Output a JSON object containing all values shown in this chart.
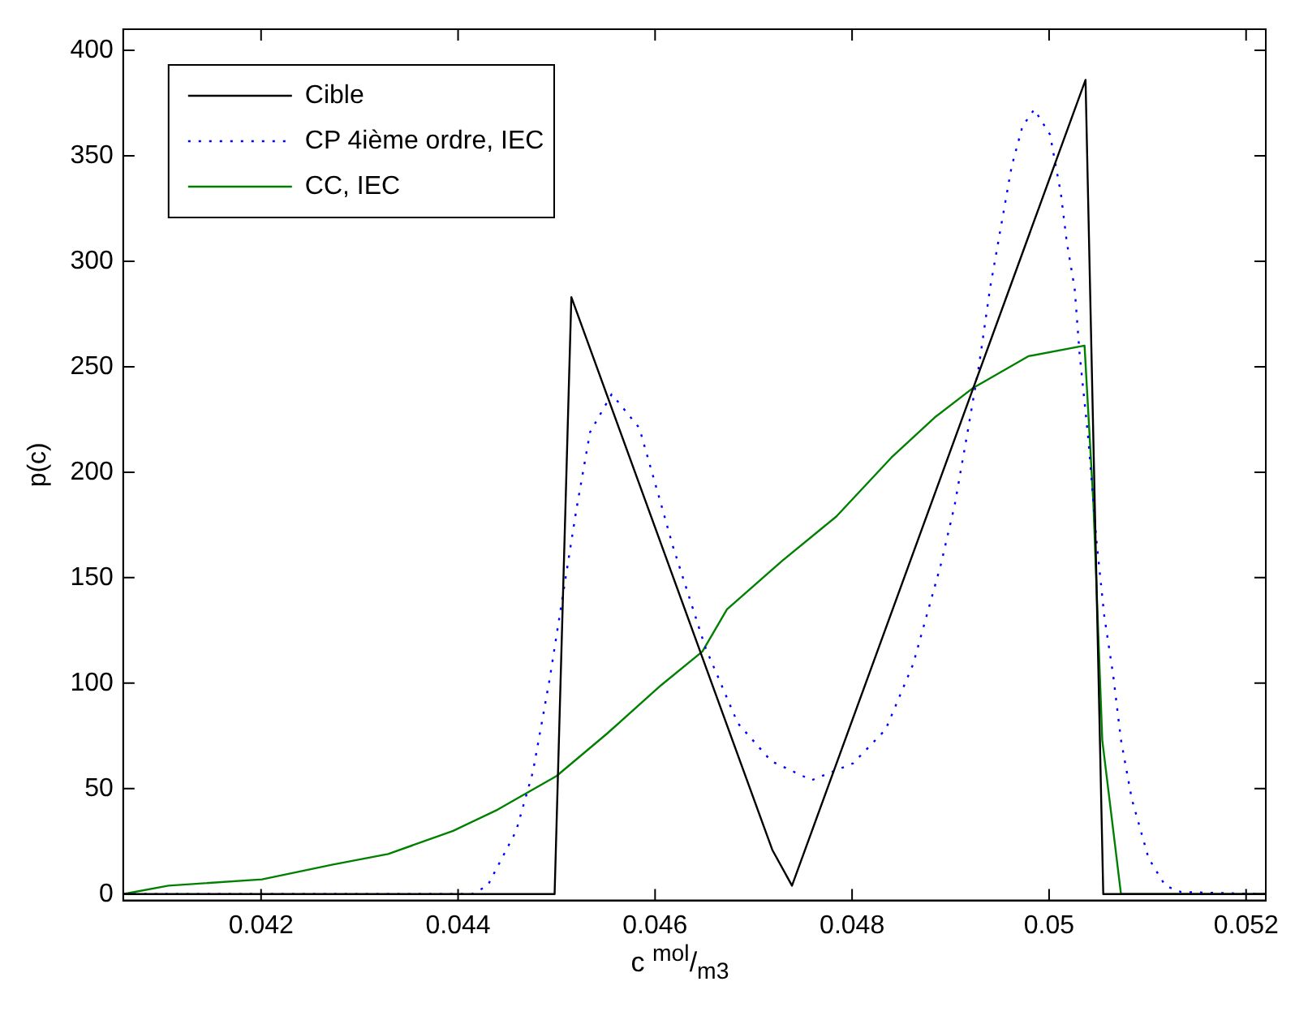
{
  "chart_data": {
    "type": "line",
    "xlabel": "c $^{mol}$/$_{m3}$",
    "ylabel": "p(c)",
    "xlim": [
      0.0406,
      0.0522
    ],
    "xticks": [
      0.042,
      0.044,
      0.046,
      0.048,
      0.05,
      0.052
    ],
    "ylim": [
      -3,
      410
    ],
    "yticks": [
      0,
      50,
      100,
      150,
      200,
      250,
      300,
      350,
      400
    ],
    "grid": false,
    "legend": "top left",
    "marker": "none",
    "series": [
      {
        "name": "Cible",
        "color": "#000000",
        "line_style": "solid",
        "x": [
          0.0406,
          0.04498,
          0.04515,
          0.04719,
          0.04739,
          0.05037,
          0.05055,
          0.0522
        ],
        "values": [
          0,
          0,
          283,
          21,
          4,
          386,
          0,
          0
        ]
      },
      {
        "name": "CP 4ième ordre, IEC",
        "color": "#0000ff",
        "line_style": "dotted",
        "x": [
          0.0406,
          0.04414,
          0.0443,
          0.04459,
          0.04476,
          0.04493,
          0.0452,
          0.04534,
          0.04556,
          0.04584,
          0.04606,
          0.04618,
          0.04651,
          0.04684,
          0.04718,
          0.04759,
          0.04801,
          0.04834,
          0.04862,
          0.0489,
          0.04904,
          0.04918,
          0.04929,
          0.0494,
          0.04951,
          0.04962,
          0.04973,
          0.04985,
          0.05001,
          0.05012,
          0.05018,
          0.05026,
          0.05031,
          0.0504,
          0.05048,
          0.05056,
          0.05065,
          0.05073,
          0.05084,
          0.05101,
          0.05118,
          0.05134,
          0.0522
        ],
        "values": [
          0,
          0,
          4,
          30,
          58,
          102,
          182,
          219,
          237,
          221,
          185,
          165,
          117,
          81,
          63,
          54,
          62,
          78,
          109,
          156,
          184,
          221,
          251,
          287,
          316,
          345,
          364,
          372,
          360,
          332,
          309,
          287,
          256,
          215,
          168,
          132,
          104,
          73,
          45,
          17,
          4,
          1,
          0
        ]
      },
      {
        "name": "CC, IEC",
        "color": "#008000",
        "line_style": "solid",
        "x": [
          0.0406,
          0.04106,
          0.04201,
          0.04273,
          0.04329,
          0.04395,
          0.0444,
          0.045,
          0.04551,
          0.04606,
          0.04648,
          0.04673,
          0.04729,
          0.04784,
          0.0484,
          0.04884,
          0.04923,
          0.04979,
          0.05036,
          0.05045,
          0.05054,
          0.05073,
          0.0522
        ],
        "values": [
          0,
          4,
          7,
          14,
          19,
          30,
          40,
          56,
          76,
          99,
          115,
          135,
          158,
          179,
          207,
          226,
          240,
          255,
          260,
          185,
          73,
          0,
          0
        ]
      }
    ]
  }
}
